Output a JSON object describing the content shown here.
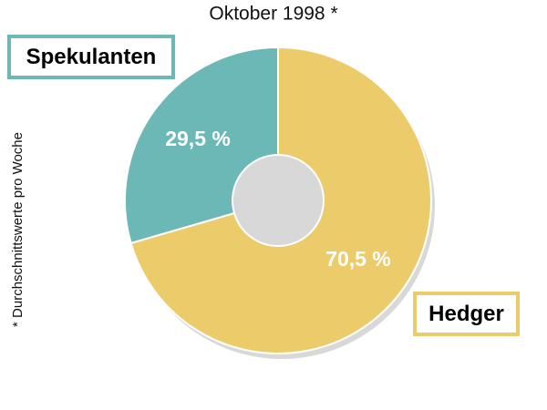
{
  "chart_data": {
    "type": "pie",
    "title": "Oktober 1998 *",
    "categories": [
      "Hedger",
      "Spekulanten"
    ],
    "values": [
      70.5,
      29.5
    ],
    "value_labels": [
      "70,5 %",
      "29,5 %"
    ],
    "colors": [
      "#eccb6a",
      "#6bb8b6"
    ],
    "note": "* Durchschnittswerte pro Woche"
  }
}
